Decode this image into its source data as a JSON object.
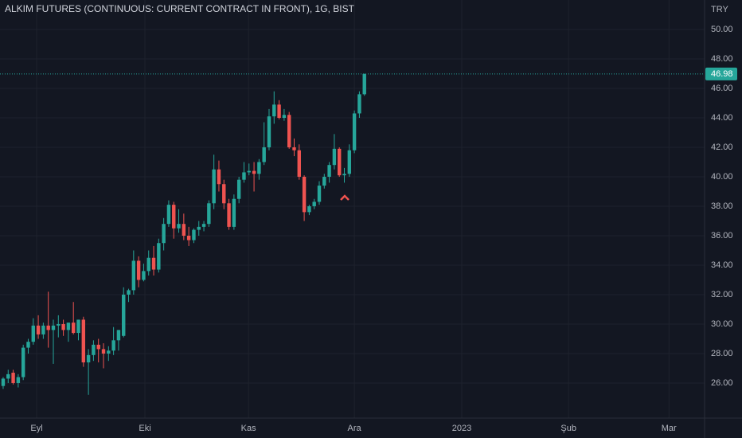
{
  "chart_data": {
    "type": "candlestick",
    "title": "ALKIM FUTURES (CONTINUOUS: CURRENT CONTRACT IN FRONT), 1G, BIST",
    "currency": "TRY",
    "up_color": "#26a69a",
    "down_color": "#ef5350",
    "grid": true,
    "last_price": 46.98,
    "x": [
      0,
      1,
      2,
      3,
      4,
      5,
      6,
      7,
      8,
      9,
      10,
      11,
      12,
      13,
      14,
      15,
      16,
      17,
      18,
      19,
      20,
      21,
      22,
      23,
      24,
      25,
      26,
      27,
      28,
      29,
      30,
      31,
      32,
      33,
      34,
      35,
      36,
      37,
      38,
      39,
      40,
      41,
      42,
      43,
      44,
      45,
      46,
      47,
      48,
      49,
      50,
      51,
      52,
      53,
      54,
      55,
      56,
      57,
      58,
      59,
      60,
      61,
      62,
      63,
      64,
      65,
      66,
      67,
      68,
      69,
      70,
      71,
      72
    ],
    "open": [
      25.8,
      26.3,
      26.7,
      26.0,
      26.4,
      28.4,
      28.8,
      29.9,
      29.3,
      29.9,
      29.6,
      29.9,
      30.0,
      29.6,
      30.1,
      29.4,
      30.3,
      27.4,
      27.9,
      28.6,
      28.3,
      28.0,
      28.2,
      28.9,
      29.2,
      32.0,
      32.3,
      34.3,
      33.0,
      33.6,
      34.5,
      33.7,
      35.5,
      36.8,
      38.1,
      36.5,
      36.8,
      36.0,
      35.7,
      36.4,
      36.6,
      36.8,
      38.2,
      40.5,
      39.5,
      38.2,
      36.6,
      38.5,
      39.8,
      40.3,
      40.4,
      40.2,
      41.0,
      42.0,
      44.1,
      44.9,
      44.0,
      44.2,
      42.0,
      41.8,
      40.0,
      37.6,
      38.0,
      38.3,
      39.4,
      40.0,
      40.8,
      41.9,
      40.1,
      40.2,
      41.8,
      44.3,
      45.6
    ],
    "high": [
      26.4,
      26.9,
      26.9,
      26.6,
      28.6,
      29.0,
      30.4,
      30.6,
      30.1,
      32.2,
      30.3,
      30.6,
      30.3,
      30.1,
      31.5,
      30.3,
      30.5,
      28.3,
      28.9,
      29.0,
      28.7,
      28.5,
      29.8,
      29.6,
      32.5,
      32.4,
      35.0,
      34.6,
      34.1,
      35.0,
      35.3,
      35.8,
      37.2,
      38.4,
      38.3,
      37.8,
      37.5,
      36.6,
      36.5,
      37.0,
      37.0,
      38.4,
      41.5,
      41.1,
      39.8,
      38.5,
      38.8,
      40.0,
      41.0,
      40.9,
      41.0,
      41.2,
      43.7,
      44.6,
      45.8,
      45.2,
      44.6,
      44.4,
      42.6,
      42.2,
      40.1,
      38.1,
      38.5,
      39.7,
      40.2,
      41.0,
      42.9,
      42.0,
      40.6,
      42.2,
      44.5,
      45.8,
      47.0
    ],
    "low": [
      25.6,
      26.0,
      25.9,
      25.7,
      26.2,
      28.0,
      28.6,
      29.0,
      29.0,
      28.4,
      27.3,
      29.1,
      29.2,
      28.8,
      29.3,
      28.9,
      27.1,
      25.2,
      27.5,
      27.4,
      27.0,
      27.5,
      27.9,
      28.2,
      29.1,
      31.5,
      32.0,
      32.5,
      32.9,
      33.3,
      33.3,
      33.5,
      35.0,
      36.6,
      35.8,
      36.2,
      35.7,
      35.3,
      35.5,
      36.0,
      36.3,
      36.6,
      37.8,
      39.0,
      37.8,
      36.4,
      36.4,
      38.2,
      39.6,
      40.1,
      39.0,
      39.8,
      40.8,
      41.8,
      43.6,
      43.9,
      43.8,
      41.9,
      41.4,
      39.8,
      37.0,
      37.4,
      37.8,
      38.1,
      39.2,
      39.6,
      40.5,
      40.0,
      39.6,
      40.0,
      41.6,
      44.0,
      45.5
    ],
    "close": [
      26.3,
      26.6,
      26.0,
      26.4,
      28.4,
      28.8,
      29.9,
      29.3,
      29.9,
      29.6,
      29.9,
      30.0,
      29.6,
      30.1,
      29.4,
      30.3,
      27.4,
      27.9,
      28.6,
      28.3,
      28.0,
      28.2,
      28.9,
      29.6,
      32.0,
      32.3,
      34.3,
      33.0,
      33.6,
      34.5,
      33.7,
      35.5,
      36.8,
      38.1,
      36.5,
      36.8,
      36.0,
      35.7,
      36.4,
      36.6,
      36.8,
      38.2,
      40.5,
      39.5,
      38.2,
      36.6,
      38.5,
      39.8,
      40.3,
      40.4,
      40.2,
      41.0,
      42.0,
      44.1,
      44.9,
      44.0,
      44.2,
      42.0,
      41.8,
      40.0,
      37.6,
      38.0,
      38.3,
      39.4,
      40.0,
      40.8,
      41.9,
      40.1,
      40.2,
      41.8,
      44.3,
      45.6,
      46.98
    ],
    "xlim": [
      -0.63,
      139.8
    ],
    "xticks": [
      {
        "value": 6.67,
        "label": "Eyl"
      },
      {
        "value": 28.25,
        "label": "Eki"
      },
      {
        "value": 48.9,
        "label": "Kas"
      },
      {
        "value": 70.0,
        "label": "Ara"
      },
      {
        "value": 91.4,
        "label": "2023"
      },
      {
        "value": 112.7,
        "label": "Şub"
      },
      {
        "value": 132.7,
        "label": "Mar"
      }
    ],
    "ylim": [
      23.62,
      52
    ],
    "yticks": [
      {
        "value": 26,
        "label": "26.00"
      },
      {
        "value": 28,
        "label": "28.00"
      },
      {
        "value": 30,
        "label": "30.00"
      },
      {
        "value": 32,
        "label": "32.00"
      },
      {
        "value": 34,
        "label": "34.00"
      },
      {
        "value": 36,
        "label": "36.00"
      },
      {
        "value": 38,
        "label": "38.00"
      },
      {
        "value": 40,
        "label": "40.00"
      },
      {
        "value": 42,
        "label": "42.00"
      },
      {
        "value": 44,
        "label": "44.00"
      },
      {
        "value": 46,
        "label": "46.00"
      },
      {
        "value": 48,
        "label": "48.00"
      },
      {
        "value": 50,
        "label": "50.00"
      }
    ]
  }
}
